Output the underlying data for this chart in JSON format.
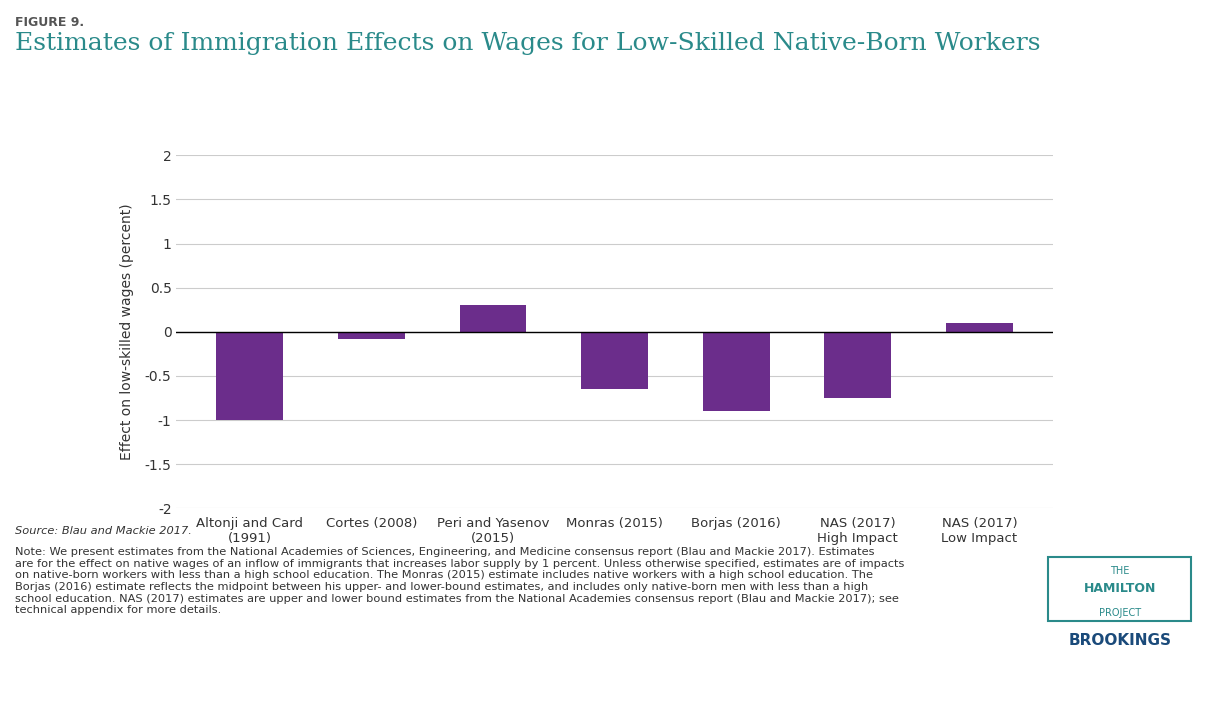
{
  "figure_label": "FIGURE 9.",
  "title": "Estimates of Immigration Effects on Wages for Low-Skilled Native-Born Workers",
  "categories": [
    "Altonji and Card\n(1991)",
    "Cortes (2008)",
    "Peri and Yasenov\n(2015)",
    "Monras (2015)",
    "Borjas (2016)",
    "NAS (2017)\nHigh Impact",
    "NAS (2017)\nLow Impact"
  ],
  "values": [
    -1.0,
    -0.08,
    0.3,
    -0.65,
    -0.9,
    -0.75,
    0.1
  ],
  "bar_color": "#6B2D8B",
  "ylabel": "Effect on low-skilled wages (percent)",
  "ylim": [
    -2.0,
    2.0
  ],
  "yticks": [
    -2.0,
    -1.5,
    -1.0,
    -0.5,
    0.0,
    0.5,
    1.0,
    1.5,
    2.0
  ],
  "grid_color": "#cccccc",
  "background_color": "#ffffff",
  "title_color": "#2a8a8a",
  "figure_label_color": "#555555",
  "tick_label_color": "#333333",
  "source_text": "Source: Blau and Mackie 2017.",
  "note_text": "Note: We present estimates from the National Academies of Sciences, Engineering, and Medicine consensus report (Blau and Mackie 2017). Estimates\nare for the effect on native wages of an inflow of immigrants that increases labor supply by 1 percent. Unless otherwise specified, estimates are of impacts\non native-born workers with less than a high school education. The Monras (2015) estimate includes native workers with a high school education. The\nBorjas (2016) estimate reflects the midpoint between his upper- and lower-bound estimates, and includes only native-born men with less than a high\nschool education. NAS (2017) estimates are upper and lower bound estimates from the National Academies consensus report (Blau and Mackie 2017); see\ntechnical appendix for more details."
}
